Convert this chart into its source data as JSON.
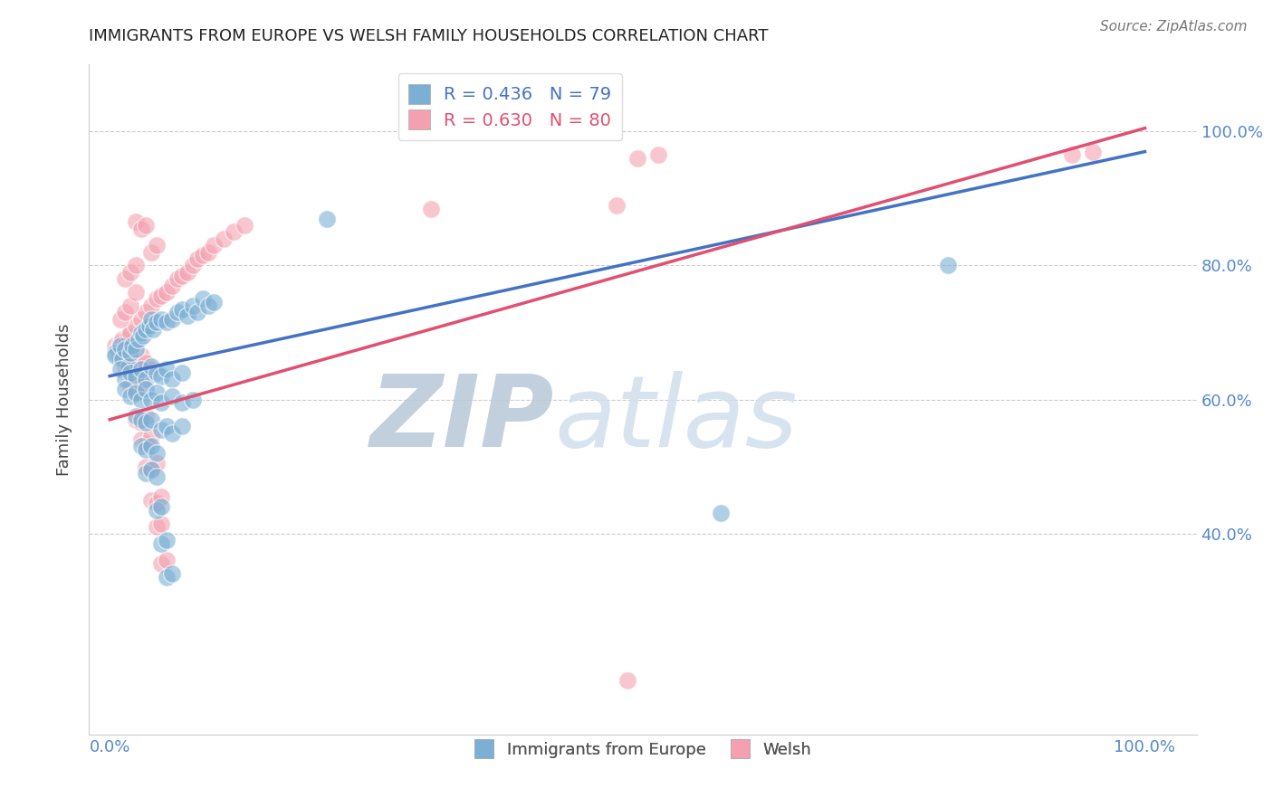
{
  "title": "IMMIGRANTS FROM EUROPE VS WELSH FAMILY HOUSEHOLDS CORRELATION CHART",
  "source": "Source: ZipAtlas.com",
  "ylabel": "Family Households",
  "r_blue": 0.436,
  "n_blue": 79,
  "r_pink": 0.63,
  "n_pink": 80,
  "blue_color": "#7BAFD4",
  "pink_color": "#F4A0B0",
  "blue_line_color": "#4472C4",
  "pink_line_color": "#E05070",
  "watermark_zip": "ZIP",
  "watermark_atlas": "atlas",
  "legend_blue_label": "Immigrants from Europe",
  "legend_pink_label": "Welsh",
  "blue_points": [
    [
      0.5,
      67.0
    ],
    [
      0.5,
      66.5
    ],
    [
      1.0,
      68.0
    ],
    [
      1.2,
      66.0
    ],
    [
      1.5,
      67.5
    ],
    [
      1.8,
      65.0
    ],
    [
      2.0,
      67.0
    ],
    [
      2.2,
      68.0
    ],
    [
      2.5,
      67.5
    ],
    [
      2.8,
      69.0
    ],
    [
      3.0,
      70.0
    ],
    [
      3.2,
      69.5
    ],
    [
      3.5,
      70.5
    ],
    [
      3.8,
      71.0
    ],
    [
      4.0,
      72.0
    ],
    [
      4.2,
      70.5
    ],
    [
      4.5,
      71.5
    ],
    [
      5.0,
      72.0
    ],
    [
      5.5,
      71.5
    ],
    [
      6.0,
      72.0
    ],
    [
      6.5,
      73.0
    ],
    [
      7.0,
      73.5
    ],
    [
      7.5,
      72.5
    ],
    [
      8.0,
      74.0
    ],
    [
      8.5,
      73.0
    ],
    [
      9.0,
      75.0
    ],
    [
      9.5,
      74.0
    ],
    [
      10.0,
      74.5
    ],
    [
      1.0,
      64.5
    ],
    [
      1.5,
      63.0
    ],
    [
      2.0,
      64.0
    ],
    [
      2.5,
      63.5
    ],
    [
      3.0,
      64.5
    ],
    [
      3.5,
      63.0
    ],
    [
      4.0,
      65.0
    ],
    [
      4.5,
      64.0
    ],
    [
      5.0,
      63.5
    ],
    [
      5.5,
      64.5
    ],
    [
      6.0,
      63.0
    ],
    [
      7.0,
      64.0
    ],
    [
      1.5,
      61.5
    ],
    [
      2.0,
      60.5
    ],
    [
      2.5,
      61.0
    ],
    [
      3.0,
      60.0
    ],
    [
      3.5,
      61.5
    ],
    [
      4.0,
      60.0
    ],
    [
      4.5,
      61.0
    ],
    [
      5.0,
      59.5
    ],
    [
      6.0,
      60.5
    ],
    [
      7.0,
      59.5
    ],
    [
      8.0,
      60.0
    ],
    [
      2.5,
      57.5
    ],
    [
      3.0,
      57.0
    ],
    [
      3.5,
      56.5
    ],
    [
      4.0,
      57.0
    ],
    [
      5.0,
      55.5
    ],
    [
      5.5,
      56.0
    ],
    [
      6.0,
      55.0
    ],
    [
      7.0,
      56.0
    ],
    [
      3.0,
      53.0
    ],
    [
      3.5,
      52.5
    ],
    [
      4.0,
      53.0
    ],
    [
      4.5,
      52.0
    ],
    [
      3.5,
      49.0
    ],
    [
      4.0,
      49.5
    ],
    [
      4.5,
      48.5
    ],
    [
      4.5,
      43.5
    ],
    [
      5.0,
      44.0
    ],
    [
      5.0,
      38.5
    ],
    [
      5.5,
      39.0
    ],
    [
      5.5,
      33.5
    ],
    [
      6.0,
      34.0
    ],
    [
      21.0,
      87.0
    ],
    [
      81.0,
      80.0
    ],
    [
      59.0,
      43.0
    ]
  ],
  "pink_points": [
    [
      0.5,
      68.0
    ],
    [
      0.8,
      67.5
    ],
    [
      1.0,
      68.5
    ],
    [
      1.2,
      69.0
    ],
    [
      1.5,
      68.0
    ],
    [
      1.8,
      69.5
    ],
    [
      2.0,
      70.0
    ],
    [
      2.5,
      71.0
    ],
    [
      3.0,
      72.0
    ],
    [
      3.5,
      73.0
    ],
    [
      4.0,
      74.0
    ],
    [
      4.5,
      75.0
    ],
    [
      5.0,
      75.5
    ],
    [
      5.5,
      76.0
    ],
    [
      6.0,
      77.0
    ],
    [
      6.5,
      78.0
    ],
    [
      7.0,
      78.5
    ],
    [
      7.5,
      79.0
    ],
    [
      8.0,
      80.0
    ],
    [
      8.5,
      81.0
    ],
    [
      9.0,
      81.5
    ],
    [
      9.5,
      82.0
    ],
    [
      10.0,
      83.0
    ],
    [
      11.0,
      84.0
    ],
    [
      12.0,
      85.0
    ],
    [
      13.0,
      86.0
    ],
    [
      1.0,
      72.0
    ],
    [
      1.5,
      73.0
    ],
    [
      2.0,
      74.0
    ],
    [
      2.5,
      76.0
    ],
    [
      1.5,
      78.0
    ],
    [
      2.0,
      79.0
    ],
    [
      2.5,
      80.0
    ],
    [
      2.5,
      86.5
    ],
    [
      3.0,
      85.5
    ],
    [
      3.5,
      86.0
    ],
    [
      4.0,
      82.0
    ],
    [
      4.5,
      83.0
    ],
    [
      1.0,
      66.0
    ],
    [
      1.5,
      65.0
    ],
    [
      2.0,
      64.0
    ],
    [
      2.5,
      65.0
    ],
    [
      3.0,
      66.5
    ],
    [
      3.5,
      65.5
    ],
    [
      4.0,
      64.5
    ],
    [
      2.0,
      62.0
    ],
    [
      2.5,
      61.0
    ],
    [
      3.0,
      62.5
    ],
    [
      2.5,
      57.0
    ],
    [
      3.0,
      56.5
    ],
    [
      3.5,
      57.5
    ],
    [
      3.0,
      54.0
    ],
    [
      3.5,
      53.5
    ],
    [
      4.0,
      54.5
    ],
    [
      3.5,
      50.0
    ],
    [
      4.0,
      49.5
    ],
    [
      4.5,
      50.5
    ],
    [
      4.0,
      45.0
    ],
    [
      4.5,
      44.5
    ],
    [
      5.0,
      45.5
    ],
    [
      4.5,
      41.0
    ],
    [
      5.0,
      41.5
    ],
    [
      5.0,
      35.5
    ],
    [
      5.5,
      36.0
    ],
    [
      51.0,
      96.0
    ],
    [
      53.0,
      96.5
    ],
    [
      93.0,
      96.5
    ],
    [
      95.0,
      97.0
    ],
    [
      31.0,
      88.5
    ],
    [
      49.0,
      89.0
    ],
    [
      50.0,
      18.0
    ]
  ],
  "blue_line": [
    [
      0,
      63.5
    ],
    [
      100,
      97.0
    ]
  ],
  "pink_line": [
    [
      0,
      57.0
    ],
    [
      100,
      100.5
    ]
  ],
  "ylim": [
    10.0,
    110.0
  ],
  "xlim": [
    -2.0,
    105.0
  ],
  "ytick_positions": [
    40,
    60,
    80,
    100
  ],
  "ytick_labels": [
    "40.0%",
    "60.0%",
    "80.0%",
    "100.0%"
  ],
  "xtick_positions": [
    0,
    100
  ],
  "xtick_labels": [
    "0.0%",
    "100.0%"
  ]
}
